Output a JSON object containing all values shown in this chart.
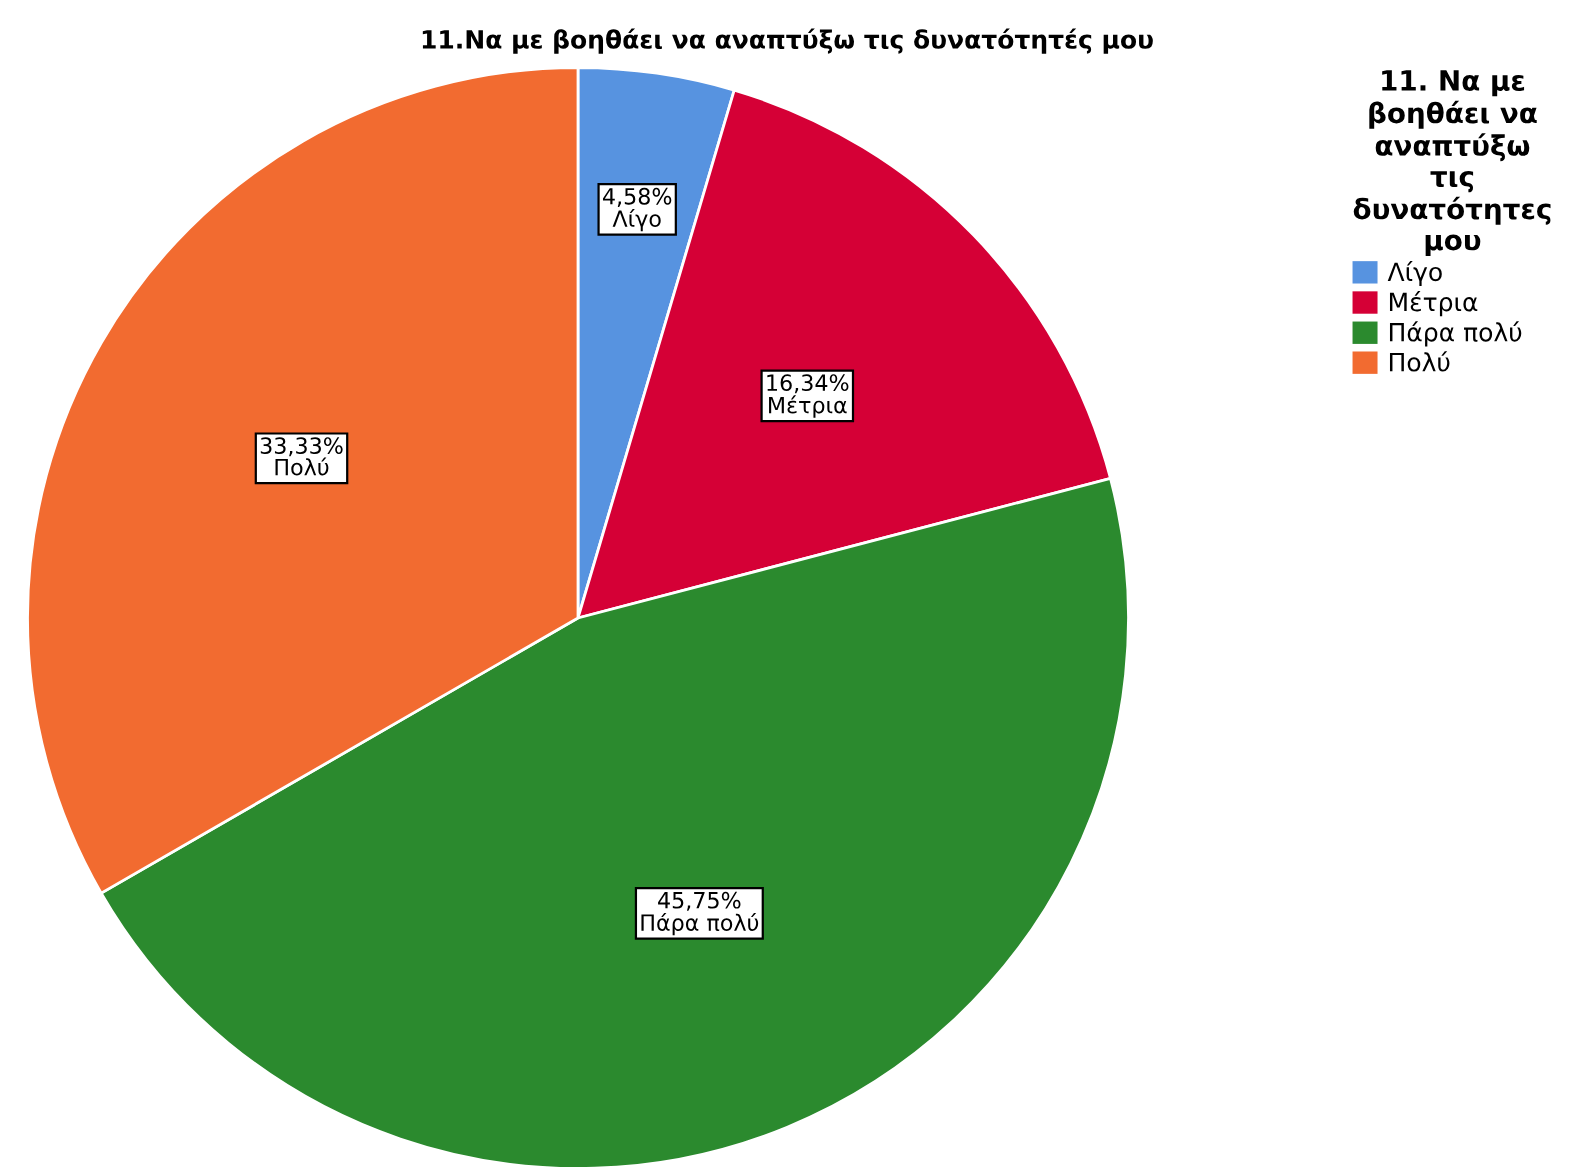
{
  "chart_data": {
    "type": "pie",
    "title": "11.Να με βοηθάει να αναπτύξω τις δυνατότητές μου",
    "legend_title": "11. Να με βοηθάει να αναπτύξω τις δυνατότητες μου",
    "categories": [
      "Λίγο",
      "Μέτρια",
      "Πάρα πολύ",
      "Πολύ"
    ],
    "values": [
      4.58,
      16.34,
      45.75,
      33.33
    ],
    "value_labels": [
      "4,58%",
      "16,34%",
      "45,75%",
      "33,33%"
    ],
    "colors": [
      "#5793e0",
      "#d50036",
      "#2b8a2e",
      "#f26b30"
    ],
    "legend": "right"
  }
}
